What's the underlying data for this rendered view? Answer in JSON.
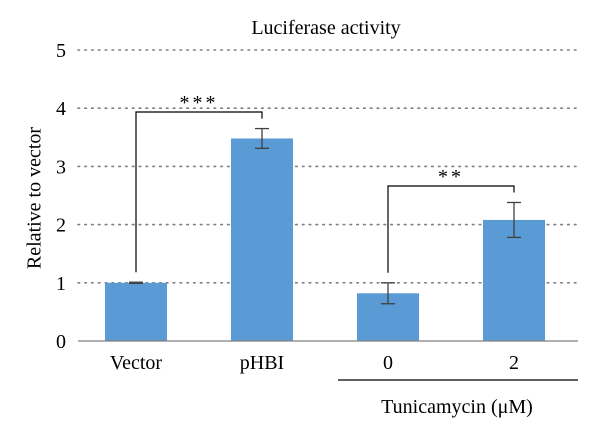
{
  "chart_data": {
    "type": "bar",
    "title": "Luciferase activity",
    "ylabel": "Relative to vector",
    "ylim": [
      0,
      5
    ],
    "yticks": [
      "0",
      "1",
      "2",
      "3",
      "4",
      "5"
    ],
    "grid": "dotted horizontal",
    "bar_color": "#5b9bd5",
    "error_color": "#404040",
    "categories": [
      "Vector",
      "pHBI",
      "0",
      "2"
    ],
    "values": [
      1.0,
      3.48,
      0.82,
      2.08
    ],
    "errors": [
      0.01,
      0.17,
      0.18,
      0.3
    ],
    "group_label": "Tunicamycin (μM)",
    "significance": [
      {
        "from": "Vector",
        "to": "pHBI",
        "label": "***"
      },
      {
        "from": "0",
        "to": "2",
        "label": "**"
      }
    ]
  }
}
